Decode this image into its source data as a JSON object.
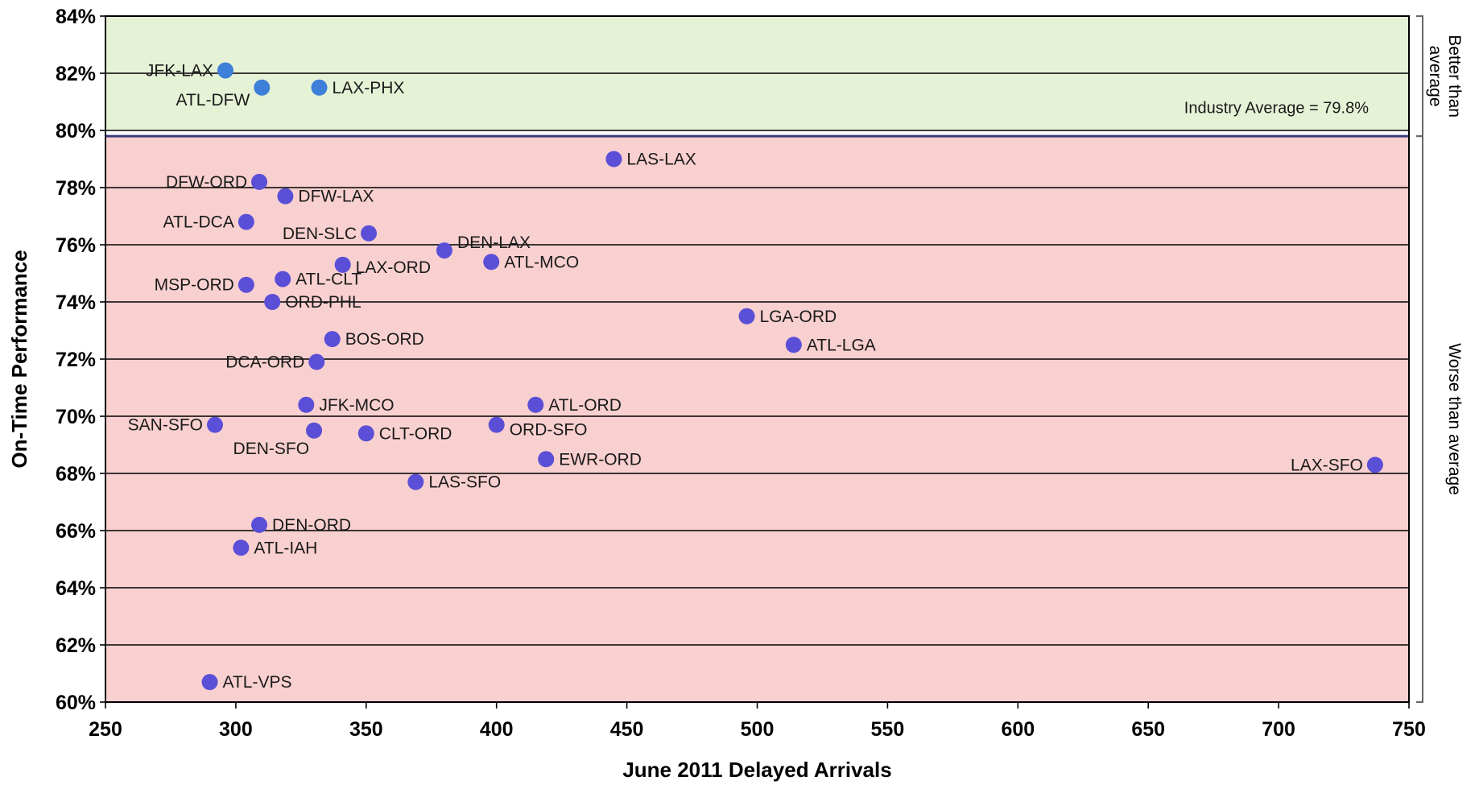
{
  "chart_data": {
    "type": "scatter",
    "xlabel": "June 2011 Delayed Arrivals",
    "ylabel": "On-Time Performance",
    "xlim": [
      250,
      750
    ],
    "ylim": [
      60,
      84
    ],
    "xticks": [
      250,
      300,
      350,
      400,
      450,
      500,
      550,
      600,
      650,
      700,
      750
    ],
    "yticks": [
      60,
      62,
      64,
      66,
      68,
      70,
      72,
      74,
      76,
      78,
      80,
      82,
      84
    ],
    "y_tick_suffix": "%",
    "grid": "horizontal",
    "industry_average": 79.8,
    "industry_average_label": "Industry Average = 79.8%",
    "region_labels": {
      "better": [
        "Better than",
        "average"
      ],
      "worse": "Worse than average"
    },
    "colors": {
      "better_fill": "#e6f2d6",
      "worse_fill": "#f9d0d0",
      "better_point": "#3d7fd9",
      "worse_point": "#5a4fd6",
      "grid": "#000000"
    },
    "points": [
      {
        "label": "JFK-LAX",
        "x": 296,
        "y": 82.1,
        "group": "better"
      },
      {
        "label": "ATL-DFW",
        "x": 310,
        "y": 81.5,
        "group": "better"
      },
      {
        "label": "LAX-PHX",
        "x": 332,
        "y": 81.5,
        "group": "better"
      },
      {
        "label": "LAS-LAX",
        "x": 445,
        "y": 79.0,
        "group": "worse"
      },
      {
        "label": "DFW-ORD",
        "x": 309,
        "y": 78.2,
        "group": "worse"
      },
      {
        "label": "DFW-LAX",
        "x": 319,
        "y": 77.7,
        "group": "worse"
      },
      {
        "label": "ATL-DCA",
        "x": 304,
        "y": 76.8,
        "group": "worse"
      },
      {
        "label": "DEN-SLC",
        "x": 351,
        "y": 76.4,
        "group": "worse"
      },
      {
        "label": "DEN-LAX",
        "x": 380,
        "y": 75.8,
        "group": "worse"
      },
      {
        "label": "ATL-MCO",
        "x": 398,
        "y": 75.4,
        "group": "worse"
      },
      {
        "label": "LAX-ORD",
        "x": 341,
        "y": 75.3,
        "group": "worse"
      },
      {
        "label": "ATL-CLT",
        "x": 318,
        "y": 74.8,
        "group": "worse"
      },
      {
        "label": "MSP-ORD",
        "x": 304,
        "y": 74.6,
        "group": "worse"
      },
      {
        "label": "ORD-PHL",
        "x": 314,
        "y": 74.0,
        "group": "worse"
      },
      {
        "label": "LGA-ORD",
        "x": 496,
        "y": 73.5,
        "group": "worse"
      },
      {
        "label": "BOS-ORD",
        "x": 337,
        "y": 72.7,
        "group": "worse"
      },
      {
        "label": "ATL-LGA",
        "x": 514,
        "y": 72.5,
        "group": "worse"
      },
      {
        "label": "DCA-ORD",
        "x": 331,
        "y": 71.9,
        "group": "worse"
      },
      {
        "label": "JFK-MCO",
        "x": 327,
        "y": 70.4,
        "group": "worse"
      },
      {
        "label": "ATL-ORD",
        "x": 415,
        "y": 70.4,
        "group": "worse"
      },
      {
        "label": "SAN-SFO",
        "x": 292,
        "y": 69.7,
        "group": "worse"
      },
      {
        "label": "ORD-SFO",
        "x": 400,
        "y": 69.7,
        "group": "worse"
      },
      {
        "label": "DEN-SFO",
        "x": 330,
        "y": 69.5,
        "group": "worse"
      },
      {
        "label": "CLT-ORD",
        "x": 350,
        "y": 69.4,
        "group": "worse"
      },
      {
        "label": "EWR-ORD",
        "x": 419,
        "y": 68.5,
        "group": "worse"
      },
      {
        "label": "LAX-SFO",
        "x": 737,
        "y": 68.3,
        "group": "worse"
      },
      {
        "label": "LAS-SFO",
        "x": 369,
        "y": 67.7,
        "group": "worse"
      },
      {
        "label": "DEN-ORD",
        "x": 309,
        "y": 66.2,
        "group": "worse"
      },
      {
        "label": "ATL-IAH",
        "x": 302,
        "y": 65.4,
        "group": "worse"
      },
      {
        "label": "ATL-VPS",
        "x": 290,
        "y": 60.7,
        "group": "worse"
      }
    ]
  }
}
